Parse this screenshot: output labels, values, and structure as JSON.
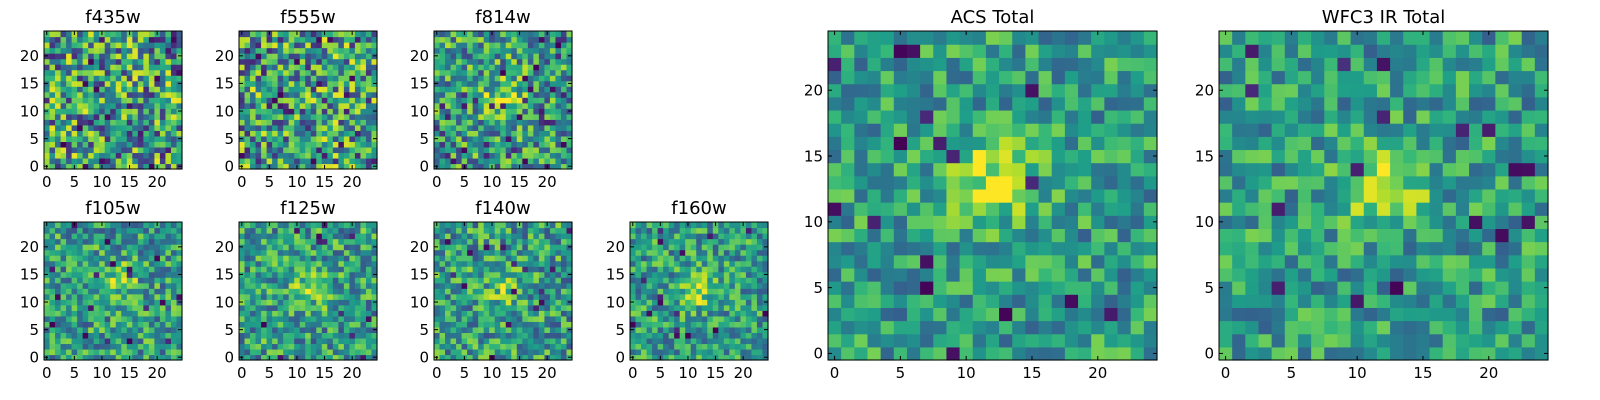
{
  "colors": {
    "low": "#440154",
    "mid": "#21918c",
    "high": "#fde725",
    "frame": "#000000"
  },
  "chart_data": [
    {
      "type": "heatmap",
      "title": "f435w",
      "xlabel": "",
      "ylabel": "",
      "xlim": [
        -0.5,
        24.5
      ],
      "ylim": [
        -0.5,
        24.5
      ],
      "xticks": [
        0,
        5,
        10,
        15,
        20
      ],
      "yticks": [
        0,
        5,
        10,
        15,
        20
      ],
      "grid": false,
      "source_size": 25,
      "peak_center": null,
      "peak_strength": 0.0,
      "noise": 0.85,
      "dark_pixel_density": 0.05
    },
    {
      "type": "heatmap",
      "title": "f555w",
      "xlabel": "",
      "ylabel": "",
      "xlim": [
        -0.5,
        24.5
      ],
      "ylim": [
        -0.5,
        24.5
      ],
      "xticks": [
        0,
        5,
        10,
        15,
        20
      ],
      "yticks": [
        0,
        5,
        10,
        15,
        20
      ],
      "grid": false,
      "source_size": 25,
      "peak_center": null,
      "peak_strength": 0.0,
      "noise": 0.85,
      "dark_pixel_density": 0.06
    },
    {
      "type": "heatmap",
      "title": "f814w",
      "xlabel": "",
      "ylabel": "",
      "xlim": [
        -0.5,
        24.5
      ],
      "ylim": [
        -0.5,
        24.5
      ],
      "xticks": [
        0,
        5,
        10,
        15,
        20
      ],
      "yticks": [
        0,
        5,
        10,
        15,
        20
      ],
      "grid": false,
      "source_size": 25,
      "peak_center": [
        12,
        12
      ],
      "peak_strength": 0.35,
      "noise": 0.7,
      "dark_pixel_density": 0.05
    },
    {
      "type": "heatmap",
      "title": "f105w",
      "xlabel": "",
      "ylabel": "",
      "xlim": [
        -0.5,
        24.5
      ],
      "ylim": [
        -0.5,
        24.5
      ],
      "xticks": [
        0,
        5,
        10,
        15,
        20
      ],
      "yticks": [
        0,
        5,
        10,
        15,
        20
      ],
      "grid": false,
      "source_size": 25,
      "peak_center": [
        13,
        14
      ],
      "peak_strength": 0.25,
      "noise": 0.6,
      "dark_pixel_density": 0.03
    },
    {
      "type": "heatmap",
      "title": "f125w",
      "xlabel": "",
      "ylabel": "",
      "xlim": [
        -0.5,
        24.5
      ],
      "ylim": [
        -0.5,
        24.5
      ],
      "xticks": [
        0,
        5,
        10,
        15,
        20
      ],
      "yticks": [
        0,
        5,
        10,
        15,
        20
      ],
      "grid": false,
      "source_size": 25,
      "peak_center": [
        12,
        12
      ],
      "peak_strength": 0.2,
      "noise": 0.6,
      "dark_pixel_density": 0.03
    },
    {
      "type": "heatmap",
      "title": "f140w",
      "xlabel": "",
      "ylabel": "",
      "xlim": [
        -0.5,
        24.5
      ],
      "ylim": [
        -0.5,
        24.5
      ],
      "xticks": [
        0,
        5,
        10,
        15,
        20
      ],
      "yticks": [
        0,
        5,
        10,
        15,
        20
      ],
      "grid": false,
      "source_size": 25,
      "peak_center": [
        12,
        12
      ],
      "peak_strength": 0.2,
      "noise": 0.6,
      "dark_pixel_density": 0.03
    },
    {
      "type": "heatmap",
      "title": "f160w",
      "xlabel": "",
      "ylabel": "",
      "xlim": [
        -0.5,
        24.5
      ],
      "ylim": [
        -0.5,
        24.5
      ],
      "xticks": [
        0,
        5,
        10,
        15,
        20
      ],
      "yticks": [
        0,
        5,
        10,
        15,
        20
      ],
      "grid": false,
      "source_size": 25,
      "peak_center": [
        12,
        12
      ],
      "peak_strength": 0.3,
      "noise": 0.55,
      "dark_pixel_density": 0.03
    },
    {
      "type": "heatmap",
      "title": "ACS Total",
      "xlabel": "",
      "ylabel": "",
      "xlim": [
        -0.5,
        24.5
      ],
      "ylim": [
        -0.5,
        24.5
      ],
      "xticks": [
        0,
        5,
        10,
        15,
        20
      ],
      "yticks": [
        0,
        5,
        10,
        15,
        20
      ],
      "grid": false,
      "source_size": 25,
      "peak_center": [
        12,
        13
      ],
      "peak_strength": 0.4,
      "noise": 0.5,
      "dark_pixel_density": 0.03
    },
    {
      "type": "heatmap",
      "title": "WFC3 IR Total",
      "xlabel": "",
      "ylabel": "",
      "xlim": [
        -0.5,
        24.5
      ],
      "ylim": [
        -0.5,
        24.5
      ],
      "xticks": [
        0,
        5,
        10,
        15,
        20
      ],
      "yticks": [
        0,
        5,
        10,
        15,
        20
      ],
      "grid": false,
      "source_size": 25,
      "peak_center": [
        12,
        13
      ],
      "peak_strength": 0.4,
      "noise": 0.5,
      "dark_pixel_density": 0.02
    }
  ]
}
